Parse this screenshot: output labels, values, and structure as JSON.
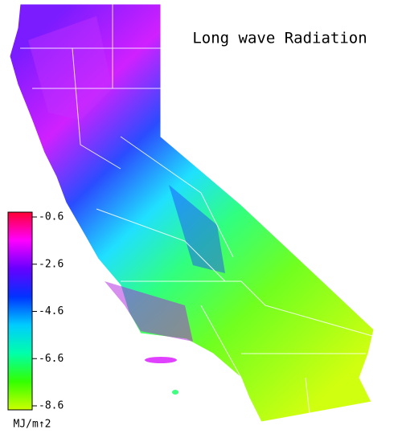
{
  "title": "Long wave Radiation",
  "colorbar": {
    "label": "MJ/m↑2",
    "lim": [
      -8.6,
      -0.6
    ],
    "ticks": [
      -0.6,
      -2.6,
      -4.6,
      -6.6,
      -8.6
    ],
    "colors": [
      "#ccff00",
      "#33ff00",
      "#00ffaa",
      "#00ccff",
      "#0033ff",
      "#6600ff",
      "#ff00ff",
      "#ff0033"
    ]
  }
}
